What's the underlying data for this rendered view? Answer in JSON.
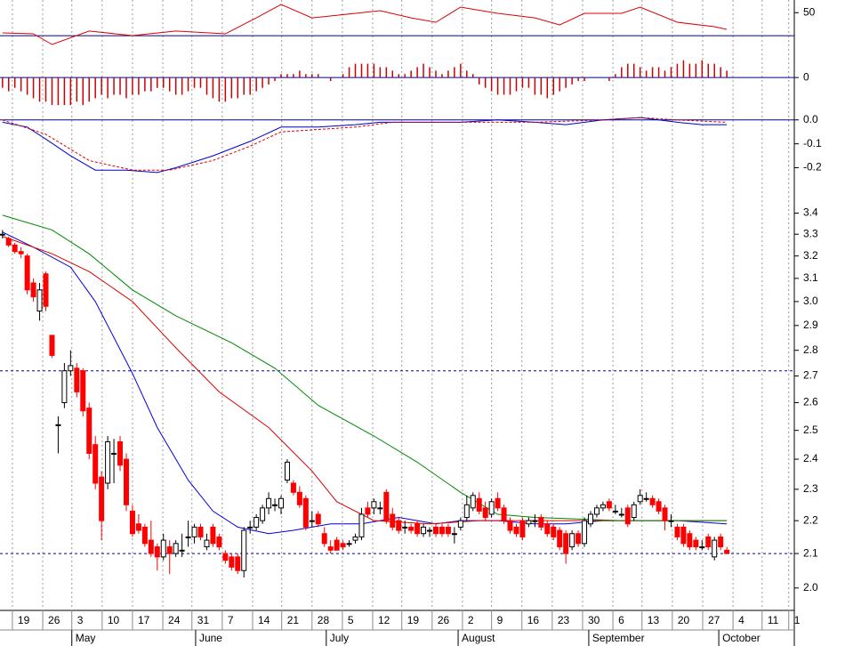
{
  "chart_data": [
    {
      "type": "line",
      "ylim": [
        10,
        61
      ],
      "yticks": [
        50
      ],
      "hlines": [
        30
      ],
      "hline_color": "#00008b",
      "series": [
        {
          "color": "#dd0000",
          "x": [
            0,
            5,
            8,
            14,
            21,
            28,
            36,
            41,
            45,
            50,
            57,
            61,
            66,
            70,
            74,
            80,
            86,
            90,
            94,
            100,
            103,
            109,
            115,
            117
          ],
          "values": [
            32.4,
            31.6,
            22.4,
            34.0,
            30.1,
            34.0,
            31.6,
            45.5,
            57.1,
            45.5,
            49.4,
            51.7,
            45.5,
            41.7,
            54.8,
            49.4,
            45.5,
            39.4,
            49.4,
            49.4,
            54.8,
            41.7,
            37.8,
            35.5
          ]
        }
      ]
    },
    {
      "type": "bar",
      "ylim": [
        -0.9,
        0.7
      ],
      "yticks": [
        0
      ],
      "hlines": [
        0
      ],
      "hline_color": "#00008b",
      "color": "#cc0000",
      "values": [
        -0.3,
        -0.4,
        -0.3,
        -0.4,
        -0.5,
        -0.6,
        -0.7,
        -0.7,
        -0.8,
        -0.8,
        -0.8,
        -0.8,
        -0.7,
        -0.8,
        -0.7,
        -0.6,
        -0.5,
        -0.6,
        -0.5,
        -0.5,
        -0.6,
        -0.5,
        -0.5,
        -0.4,
        -0.4,
        -0.3,
        -0.3,
        -0.4,
        -0.5,
        -0.5,
        -0.4,
        -0.3,
        -0.3,
        -0.5,
        -0.6,
        -0.7,
        -0.7,
        -0.6,
        -0.6,
        -0.5,
        -0.5,
        -0.4,
        -0.3,
        -0.2,
        -0.1,
        0.1,
        0.1,
        0.1,
        0.2,
        0.1,
        0.1,
        0.1,
        0,
        -0.1,
        0,
        0.1,
        0.3,
        0.4,
        0.4,
        0.4,
        0.4,
        0.3,
        0.3,
        0.2,
        0.1,
        0.1,
        0.2,
        0.3,
        0.4,
        0.3,
        0.2,
        0.1,
        0.2,
        0.3,
        0.4,
        0.2,
        0.1,
        -0.2,
        -0.3,
        -0.4,
        -0.5,
        -0.5,
        -0.5,
        -0.4,
        -0.3,
        -0.3,
        -0.5,
        -0.5,
        -0.6,
        -0.5,
        -0.4,
        -0.3,
        -0.2,
        -0.1,
        -0.1,
        0,
        0,
        0,
        -0.1,
        0.1,
        0.3,
        0.4,
        0.4,
        0.3,
        0.2,
        0.3,
        0.3,
        0.2,
        0.3,
        0.4,
        0.5,
        0.4,
        0.4,
        0.5,
        0.4,
        0.4,
        0.3,
        0.2
      ]
    },
    {
      "type": "line",
      "ylim": [
        -0.28,
        0.04
      ],
      "yticks": [
        {
          "value": 0,
          "label": "0.0"
        },
        -0.1,
        -0.2
      ],
      "hlines": [
        0
      ],
      "hline_color": "#00008b",
      "series": [
        {
          "color": "#0000cc",
          "x": [
            0,
            4,
            7,
            11,
            15,
            20,
            25,
            28,
            34,
            40,
            45,
            51,
            57,
            61,
            69,
            74,
            80,
            86,
            91,
            97,
            103,
            109,
            113,
            117
          ],
          "values": [
            -0.01,
            -0.03,
            -0.08,
            -0.15,
            -0.21,
            -0.21,
            -0.22,
            -0.2,
            -0.15,
            -0.09,
            -0.03,
            -0.03,
            -0.02,
            -0.01,
            -0.01,
            -0.01,
            0,
            -0.01,
            -0.02,
            0,
            0.01,
            -0.01,
            -0.02,
            -0.02
          ]
        },
        {
          "color": "#dd0000",
          "dashed": true,
          "x": [
            0,
            7,
            14,
            21,
            27,
            34,
            40,
            45,
            51,
            57,
            63,
            74,
            86,
            97,
            103,
            109,
            117
          ],
          "values": [
            0,
            -0.06,
            -0.17,
            -0.21,
            -0.21,
            -0.17,
            -0.11,
            -0.05,
            -0.04,
            -0.03,
            -0.01,
            -0.01,
            -0.01,
            0,
            0.01,
            0,
            -0.01
          ]
        }
      ]
    },
    {
      "type": "candlestick",
      "log_scale": true,
      "ylim": [
        1.94,
        3.52
      ],
      "yticks": [
        {
          "value": 2.0,
          "label": "2.0"
        },
        2.1,
        2.2,
        2.3,
        2.4,
        2.5,
        2.6,
        2.7,
        2.8,
        2.9,
        {
          "value": 3.0,
          "label": "3.0"
        },
        3.1,
        3.2,
        3.3,
        3.4
      ],
      "hlines": [
        2.72,
        2.1
      ],
      "hline_color": "#0000aa",
      "grid": true,
      "xlim": [
        -0.4,
        127.9
      ],
      "xticks": [
        {
          "value": 1.6,
          "label": "19"
        },
        {
          "value": 6.5,
          "label": "26"
        },
        {
          "value": 11.2,
          "label": "3"
        },
        {
          "value": 16.1,
          "label": "10"
        },
        {
          "value": 21.0,
          "label": "17"
        },
        {
          "value": 25.9,
          "label": "24"
        },
        {
          "value": 30.6,
          "label": "31"
        },
        {
          "value": 35.5,
          "label": "7"
        },
        {
          "value": 40.4,
          "label": "14"
        },
        {
          "value": 45.1,
          "label": "21"
        },
        {
          "value": 50.0,
          "label": "28"
        },
        {
          "value": 54.9,
          "label": "5"
        },
        {
          "value": 59.8,
          "label": "12"
        },
        {
          "value": 64.5,
          "label": "19"
        },
        {
          "value": 69.4,
          "label": "26"
        },
        {
          "value": 74.3,
          "label": "2"
        },
        {
          "value": 79.0,
          "label": "9"
        },
        {
          "value": 83.9,
          "label": "16"
        },
        {
          "value": 88.8,
          "label": "23"
        },
        {
          "value": 93.7,
          "label": "30"
        },
        {
          "value": 98.6,
          "label": "6"
        },
        {
          "value": 103.3,
          "label": "13"
        },
        {
          "value": 108.2,
          "label": "20"
        },
        {
          "value": 113.1,
          "label": "27"
        },
        {
          "value": 118.0,
          "label": "4"
        },
        {
          "value": 122.7,
          "label": "11"
        },
        {
          "value": 127.0,
          "label": "1"
        }
      ],
      "months": [
        {
          "value": 11.2,
          "label": "May"
        },
        {
          "value": 31.2,
          "label": "June"
        },
        {
          "value": 52.3,
          "label": "July"
        },
        {
          "value": 73.6,
          "label": "August"
        },
        {
          "value": 94.7,
          "label": "September"
        },
        {
          "value": 115.7,
          "label": "October"
        }
      ],
      "rise_color": "#ffffff",
      "fall_color": "#ff0000",
      "open": [
        3.3,
        3.28,
        3.25,
        3.22,
        3.2,
        3.08,
        2.96,
        3.12,
        2.86,
        2.52,
        2.6,
        2.72,
        2.73,
        2.72,
        2.58,
        2.45,
        2.34,
        2.32,
        2.42,
        2.46,
        2.4,
        2.23,
        2.19,
        2.18,
        2.14,
        2.12,
        2.09,
        2.12,
        2.1,
        2.11,
        2.15,
        2.15,
        2.18,
        2.12,
        2.18,
        2.15,
        2.1,
        2.09,
        2.09,
        2.05,
        2.18,
        2.18,
        2.2,
        2.24,
        2.25,
        2.24,
        2.33,
        2.32,
        2.29,
        2.27,
        2.2,
        2.22,
        2.16,
        2.12,
        2.14,
        2.13,
        2.13,
        2.14,
        2.15,
        2.24,
        2.24,
        2.24,
        2.29,
        2.22,
        2.2,
        2.18,
        2.18,
        2.19,
        2.16,
        2.17,
        2.18,
        2.18,
        2.18,
        2.16,
        2.18,
        2.21,
        2.24,
        2.27,
        2.24,
        2.22,
        2.27,
        2.24,
        2.2,
        2.18,
        2.2,
        2.19,
        2.2,
        2.21,
        2.19,
        2.18,
        2.17,
        2.16,
        2.12,
        2.16,
        2.13,
        2.19,
        2.22,
        2.24,
        2.26,
        2.23,
        2.22,
        2.24,
        2.21,
        2.26,
        2.27,
        2.27,
        2.26,
        2.24,
        2.2,
        2.18,
        2.18,
        2.16,
        2.14,
        2.12,
        2.15,
        2.09,
        2.15,
        2.11
      ],
      "high": [
        3.32,
        3.29,
        3.26,
        3.24,
        3.21,
        3.1,
        3.08,
        3.13,
        2.86,
        2.55,
        2.75,
        2.8,
        2.75,
        2.73,
        2.6,
        2.48,
        2.36,
        2.48,
        2.47,
        2.48,
        2.42,
        2.25,
        2.22,
        2.19,
        2.2,
        2.13,
        2.16,
        2.14,
        2.14,
        2.16,
        2.2,
        2.19,
        2.19,
        2.16,
        2.19,
        2.16,
        2.11,
        2.1,
        2.1,
        2.18,
        2.2,
        2.22,
        2.25,
        2.29,
        2.27,
        2.28,
        2.4,
        2.33,
        2.31,
        2.28,
        2.23,
        2.23,
        2.18,
        2.14,
        2.15,
        2.14,
        2.14,
        2.16,
        2.24,
        2.26,
        2.27,
        2.26,
        2.3,
        2.24,
        2.21,
        2.2,
        2.19,
        2.2,
        2.19,
        2.18,
        2.19,
        2.19,
        2.19,
        2.18,
        2.21,
        2.28,
        2.29,
        2.29,
        2.26,
        2.27,
        2.29,
        2.25,
        2.21,
        2.19,
        2.21,
        2.21,
        2.22,
        2.22,
        2.2,
        2.19,
        2.18,
        2.17,
        2.17,
        2.17,
        2.21,
        2.23,
        2.25,
        2.26,
        2.27,
        2.25,
        2.24,
        2.25,
        2.26,
        2.3,
        2.29,
        2.28,
        2.27,
        2.25,
        2.22,
        2.19,
        2.19,
        2.17,
        2.15,
        2.14,
        2.16,
        2.15,
        2.16,
        2.12
      ],
      "low": [
        3.28,
        3.24,
        3.21,
        3.19,
        3.03,
        3.0,
        2.92,
        2.96,
        2.77,
        2.42,
        2.58,
        2.7,
        2.62,
        2.55,
        2.4,
        2.3,
        2.14,
        2.3,
        2.32,
        2.36,
        2.23,
        2.15,
        2.16,
        2.12,
        2.09,
        2.05,
        2.08,
        2.04,
        2.09,
        2.09,
        2.12,
        2.13,
        2.14,
        2.11,
        2.12,
        2.11,
        2.07,
        2.05,
        2.04,
        2.03,
        2.16,
        2.17,
        2.19,
        2.22,
        2.23,
        2.22,
        2.32,
        2.28,
        2.24,
        2.17,
        2.18,
        2.18,
        2.12,
        2.1,
        2.11,
        2.11,
        2.12,
        2.13,
        2.14,
        2.21,
        2.22,
        2.22,
        2.19,
        2.17,
        2.16,
        2.16,
        2.16,
        2.15,
        2.15,
        2.15,
        2.15,
        2.15,
        2.15,
        2.13,
        2.17,
        2.2,
        2.23,
        2.22,
        2.2,
        2.21,
        2.23,
        2.19,
        2.16,
        2.15,
        2.14,
        2.18,
        2.18,
        2.17,
        2.15,
        2.14,
        2.11,
        2.07,
        2.11,
        2.12,
        2.12,
        2.18,
        2.21,
        2.23,
        2.23,
        2.22,
        2.21,
        2.18,
        2.2,
        2.25,
        2.26,
        2.24,
        2.22,
        2.17,
        2.18,
        2.14,
        2.12,
        2.11,
        2.11,
        2.11,
        2.11,
        2.08,
        2.11,
        2.1
      ],
      "close": [
        3.3,
        3.25,
        3.22,
        3.21,
        3.05,
        3.02,
        3.05,
        2.98,
        2.78,
        2.52,
        2.72,
        2.74,
        2.64,
        2.57,
        2.42,
        2.32,
        2.2,
        2.46,
        2.42,
        2.38,
        2.25,
        2.16,
        2.17,
        2.13,
        2.1,
        2.09,
        2.14,
        2.1,
        2.13,
        2.11,
        2.15,
        2.18,
        2.15,
        2.14,
        2.13,
        2.12,
        2.08,
        2.06,
        2.05,
        2.17,
        2.18,
        2.21,
        2.24,
        2.27,
        2.25,
        2.27,
        2.39,
        2.29,
        2.25,
        2.18,
        2.2,
        2.19,
        2.13,
        2.11,
        2.11,
        2.12,
        2.13,
        2.15,
        2.22,
        2.22,
        2.26,
        2.24,
        2.2,
        2.18,
        2.17,
        2.18,
        2.17,
        2.16,
        2.18,
        2.17,
        2.16,
        2.16,
        2.16,
        2.16,
        2.2,
        2.25,
        2.28,
        2.23,
        2.21,
        2.26,
        2.24,
        2.2,
        2.17,
        2.16,
        2.15,
        2.2,
        2.2,
        2.18,
        2.16,
        2.15,
        2.12,
        2.1,
        2.16,
        2.13,
        2.2,
        2.22,
        2.24,
        2.25,
        2.24,
        2.23,
        2.22,
        2.19,
        2.25,
        2.28,
        2.27,
        2.25,
        2.23,
        2.2,
        2.2,
        2.15,
        2.13,
        2.12,
        2.12,
        2.12,
        2.12,
        2.14,
        2.12,
        2.1
      ],
      "series": [
        {
          "color": "#0000dd",
          "x": [
            0,
            5,
            11,
            15,
            21,
            25,
            30,
            34,
            38,
            43,
            47,
            53,
            58,
            64,
            70,
            74,
            80,
            86,
            91,
            97,
            103,
            109,
            117
          ],
          "values": [
            3.31,
            3.24,
            3.15,
            3.0,
            2.71,
            2.51,
            2.33,
            2.23,
            2.18,
            2.16,
            2.17,
            2.19,
            2.19,
            2.21,
            2.19,
            2.2,
            2.2,
            2.19,
            2.19,
            2.2,
            2.2,
            2.2,
            2.19
          ]
        },
        {
          "color": "#dd0000",
          "x": [
            0,
            8,
            14,
            21,
            28,
            35,
            43,
            50,
            54,
            60,
            69,
            77,
            86,
            100,
            117
          ],
          "values": [
            3.29,
            3.21,
            3.13,
            3.0,
            2.81,
            2.64,
            2.51,
            2.36,
            2.26,
            2.2,
            2.19,
            2.2,
            2.2,
            2.2,
            2.2
          ]
        },
        {
          "color": "#008800",
          "x": [
            0,
            8,
            14,
            21,
            28,
            37,
            44,
            51,
            60,
            67,
            74,
            80,
            86,
            100,
            117
          ],
          "values": [
            3.39,
            3.32,
            3.21,
            3.05,
            2.94,
            2.83,
            2.73,
            2.59,
            2.48,
            2.39,
            2.29,
            2.22,
            2.21,
            2.2,
            2.2
          ]
        }
      ]
    }
  ]
}
